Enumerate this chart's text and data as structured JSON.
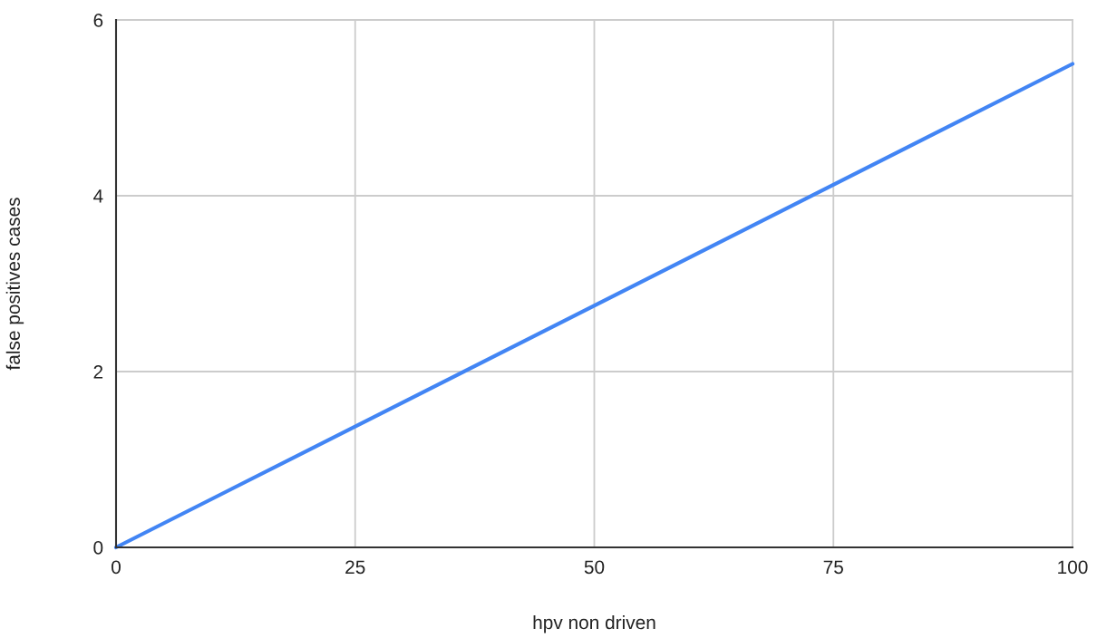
{
  "chart_data": {
    "type": "line",
    "xlabel": "hpv non driven",
    "ylabel": "false positives cases",
    "x": [
      0,
      100
    ],
    "series": [
      {
        "color": "#4285f4",
        "values": [
          0,
          5.5
        ]
      }
    ],
    "xlim": [
      0,
      100
    ],
    "xticks": [
      0,
      25,
      50,
      75,
      100
    ],
    "ylim": [
      0,
      6
    ],
    "yticks": [
      0,
      2,
      4,
      6
    ],
    "grid": true,
    "marker": "none",
    "line_style": "solid"
  }
}
